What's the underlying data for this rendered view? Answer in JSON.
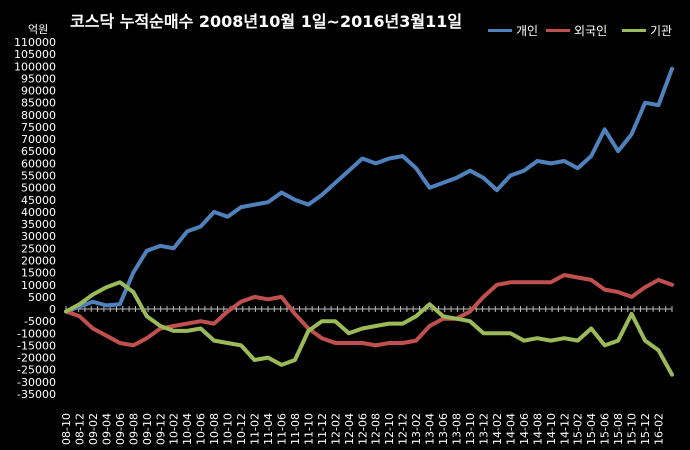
{
  "title": "코스닥 누적순매수 2008년10월 1일~2016년3월11일",
  "unit_label": "억원",
  "chart_data": {
    "type": "line",
    "title": "코스닥 누적순매수 2008년10월 1일~2016년3월11일",
    "ylabel": "억원",
    "xlabel": "",
    "ylim": [
      -35000,
      110000
    ],
    "ytick_step": 5000,
    "grid": false,
    "legend_position": "top-right",
    "x_tick_labels": [
      "08-10",
      "08-12",
      "09-02",
      "09-04",
      "09-06",
      "09-08",
      "09-10",
      "09-12",
      "10-02",
      "10-04",
      "10-06",
      "10-08",
      "10-10",
      "10-12",
      "11-02",
      "11-04",
      "11-06",
      "11-08",
      "11-10",
      "11-12",
      "12-02",
      "12-04",
      "12-06",
      "12-08",
      "12-10",
      "12-12",
      "13-02",
      "13-04",
      "13-06",
      "13-08",
      "13-10",
      "13-12",
      "14-02",
      "14-04",
      "14-06",
      "14-08",
      "14-10",
      "14-12",
      "15-02",
      "15-04",
      "15-06",
      "15-08",
      "15-10",
      "15-12",
      "16-02"
    ],
    "x": [
      "08-10",
      "08-12",
      "09-02",
      "09-04",
      "09-06",
      "09-08",
      "09-10",
      "09-12",
      "10-02",
      "10-04",
      "10-06",
      "10-08",
      "10-10",
      "10-12",
      "11-02",
      "11-04",
      "11-06",
      "11-08",
      "11-10",
      "11-12",
      "12-02",
      "12-04",
      "12-06",
      "12-08",
      "12-10",
      "12-12",
      "13-02",
      "13-04",
      "13-06",
      "13-08",
      "13-10",
      "13-12",
      "14-02",
      "14-04",
      "14-06",
      "14-08",
      "14-10",
      "14-12",
      "15-02",
      "15-04",
      "15-06",
      "15-08",
      "15-10",
      "15-12",
      "16-02",
      "16-03"
    ],
    "series": [
      {
        "name": "개인",
        "color": "#4f81bd",
        "values": [
          -1000,
          1000,
          3000,
          1500,
          2000,
          15000,
          24000,
          26000,
          25000,
          32000,
          34000,
          40000,
          38000,
          42000,
          43000,
          44000,
          48000,
          45000,
          43000,
          47000,
          52000,
          57000,
          62000,
          60000,
          62000,
          63000,
          58000,
          50000,
          52000,
          54000,
          57000,
          54000,
          49000,
          55000,
          57000,
          61000,
          60000,
          61000,
          58000,
          63000,
          74000,
          65000,
          72000,
          85000,
          84000,
          99000
        ]
      },
      {
        "name": "외국인",
        "color": "#c0504d",
        "values": [
          -1000,
          -3000,
          -8000,
          -11000,
          -14000,
          -15000,
          -12000,
          -8000,
          -7000,
          -6000,
          -5000,
          -6000,
          -1000,
          3000,
          5000,
          4000,
          5000,
          -2000,
          -8000,
          -12000,
          -14000,
          -14000,
          -14000,
          -15000,
          -14000,
          -14000,
          -13000,
          -7000,
          -4000,
          -4000,
          -1000,
          5000,
          10000,
          11000,
          11000,
          11000,
          11000,
          14000,
          13000,
          12000,
          8000,
          7000,
          5000,
          9000,
          12000,
          10000
        ]
      },
      {
        "name": "기관",
        "color": "#9bbb59",
        "values": [
          -1000,
          2000,
          6000,
          9000,
          11000,
          7000,
          -3000,
          -7000,
          -9000,
          -9000,
          -8000,
          -13000,
          -14000,
          -15000,
          -21000,
          -20000,
          -23000,
          -21000,
          -9000,
          -5000,
          -5000,
          -10000,
          -8000,
          -7000,
          -6000,
          -6000,
          -3000,
          2000,
          -3000,
          -4000,
          -5000,
          -10000,
          -10000,
          -10000,
          -13000,
          -12000,
          -13000,
          -12000,
          -13000,
          -8000,
          -15000,
          -13000,
          -2000,
          -13000,
          -17000,
          -27000
        ]
      }
    ]
  }
}
